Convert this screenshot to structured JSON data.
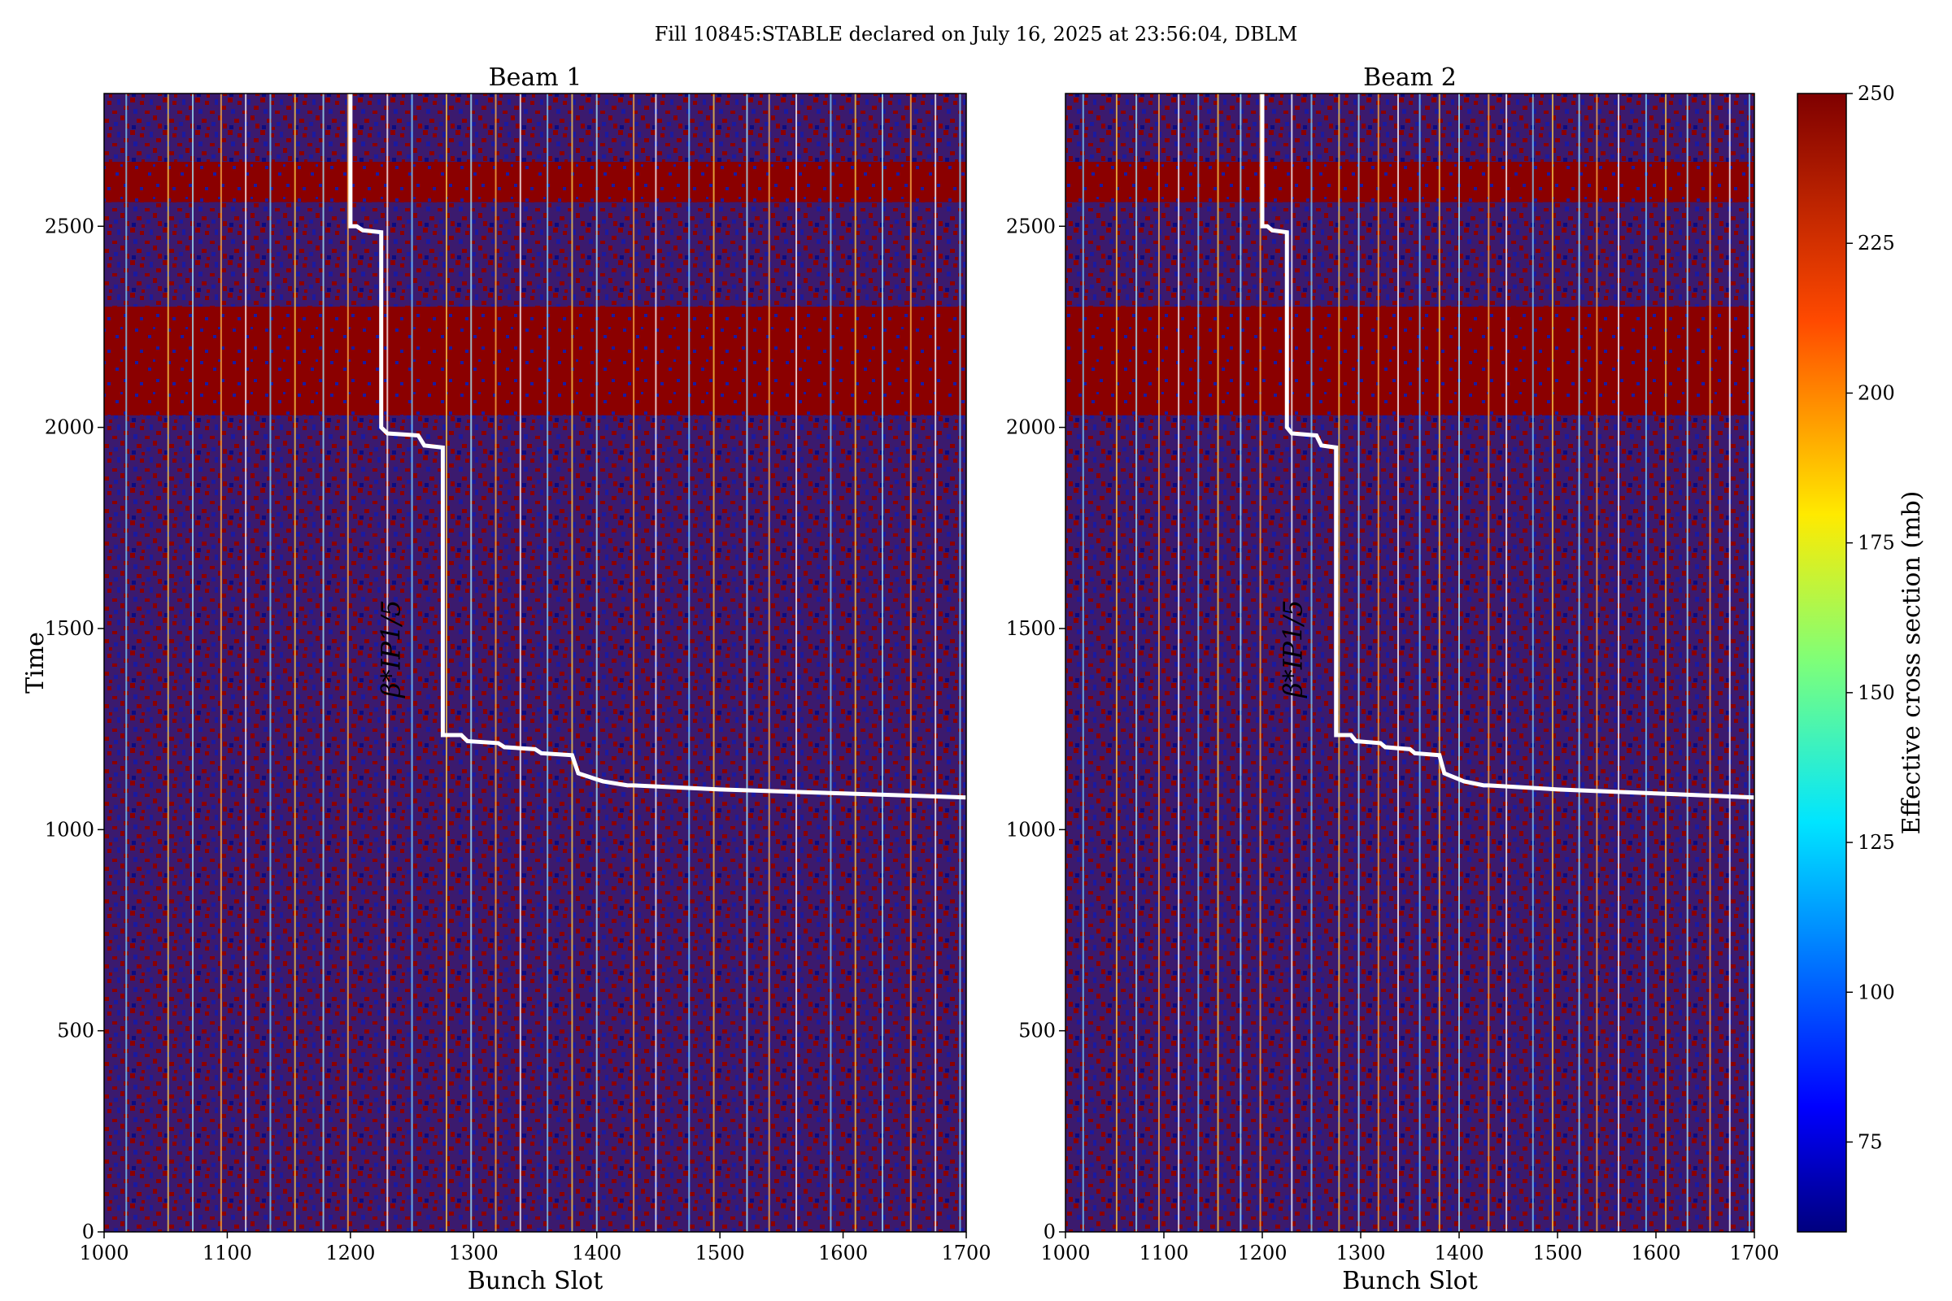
{
  "figure_title": "Fill 10845:STABLE declared on July 16, 2025 at 23:56:04, DBLM",
  "chart_data": [
    {
      "type": "heatmap",
      "title": "Beam 1",
      "xlabel": "Bunch Slot",
      "ylabel": "Time",
      "xlim": [
        1000,
        1700
      ],
      "ylim": [
        0,
        2830
      ],
      "xticks": [
        1000,
        1100,
        1200,
        1300,
        1400,
        1500,
        1600,
        1700
      ],
      "yticks": [
        0,
        500,
        1000,
        1500,
        2000,
        2500
      ],
      "annotation": "β*IP1/5",
      "beta_star_line": [
        [
          1700,
          1080
        ],
        [
          1600,
          1090
        ],
        [
          1500,
          1100
        ],
        [
          1430,
          1110
        ],
        [
          1425,
          1110
        ],
        [
          1405,
          1120
        ],
        [
          1400,
          1125
        ],
        [
          1385,
          1140
        ],
        [
          1380,
          1185
        ],
        [
          1355,
          1190
        ],
        [
          1350,
          1200
        ],
        [
          1325,
          1205
        ],
        [
          1320,
          1215
        ],
        [
          1295,
          1220
        ],
        [
          1290,
          1235
        ],
        [
          1275,
          1235
        ],
        [
          1275,
          1950
        ],
        [
          1260,
          1955
        ],
        [
          1255,
          1980
        ],
        [
          1230,
          1985
        ],
        [
          1225,
          2000
        ],
        [
          1225,
          2485
        ],
        [
          1210,
          2490
        ],
        [
          1205,
          2500
        ],
        [
          1200,
          2500
        ],
        [
          1200,
          2830
        ]
      ],
      "high_section_bands": [
        [
          2030,
          2300
        ],
        [
          2560,
          2660
        ]
      ],
      "bright_bunch_slots": [
        1018,
        1052,
        1072,
        1095,
        1115,
        1135,
        1155,
        1178,
        1198,
        1230,
        1250,
        1278,
        1298,
        1318,
        1338,
        1360,
        1380,
        1400,
        1430,
        1448,
        1475,
        1495,
        1522,
        1540,
        1562,
        1590,
        1610,
        1632,
        1655,
        1675,
        1695
      ],
      "colorbar_label": "Effective cross section (mb)",
      "colorbar_range": [
        60,
        250
      ],
      "colorbar_ticks": [
        75,
        100,
        125,
        150,
        175,
        200,
        225,
        250
      ]
    },
    {
      "type": "heatmap",
      "title": "Beam 2",
      "xlabel": "Bunch Slot",
      "ylabel": "",
      "xlim": [
        1000,
        1700
      ],
      "ylim": [
        0,
        2830
      ],
      "xticks": [
        1000,
        1100,
        1200,
        1300,
        1400,
        1500,
        1600,
        1700
      ],
      "yticks": [
        0,
        500,
        1000,
        1500,
        2000,
        2500
      ],
      "annotation": "β*IP1/5",
      "beta_star_line": [
        [
          1700,
          1080
        ],
        [
          1600,
          1090
        ],
        [
          1500,
          1100
        ],
        [
          1430,
          1110
        ],
        [
          1425,
          1110
        ],
        [
          1405,
          1120
        ],
        [
          1400,
          1125
        ],
        [
          1385,
          1140
        ],
        [
          1380,
          1185
        ],
        [
          1355,
          1190
        ],
        [
          1350,
          1200
        ],
        [
          1325,
          1205
        ],
        [
          1320,
          1215
        ],
        [
          1295,
          1220
        ],
        [
          1290,
          1235
        ],
        [
          1275,
          1235
        ],
        [
          1275,
          1950
        ],
        [
          1260,
          1955
        ],
        [
          1255,
          1980
        ],
        [
          1230,
          1985
        ],
        [
          1225,
          2000
        ],
        [
          1225,
          2485
        ],
        [
          1210,
          2490
        ],
        [
          1205,
          2500
        ],
        [
          1200,
          2500
        ],
        [
          1200,
          2830
        ]
      ],
      "high_section_bands": [
        [
          2030,
          2300
        ],
        [
          2560,
          2660
        ]
      ],
      "bright_bunch_slots": [
        1018,
        1052,
        1072,
        1095,
        1115,
        1135,
        1155,
        1178,
        1198,
        1230,
        1250,
        1278,
        1298,
        1318,
        1338,
        1360,
        1380,
        1400,
        1430,
        1448,
        1475,
        1495,
        1522,
        1540,
        1562,
        1590,
        1610,
        1632,
        1655,
        1675,
        1695
      ],
      "colorbar_label": "Effective cross section (mb)",
      "colorbar_range": [
        60,
        250
      ],
      "colorbar_ticks": [
        75,
        100,
        125,
        150,
        175,
        200,
        225,
        250
      ]
    }
  ]
}
